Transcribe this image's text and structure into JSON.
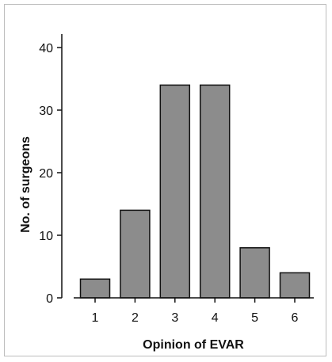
{
  "chart_data": {
    "type": "bar",
    "categories": [
      "1",
      "2",
      "3",
      "4",
      "5",
      "6"
    ],
    "values": [
      3,
      14,
      34,
      34,
      8,
      4
    ],
    "title": "",
    "xlabel": "Opinion of EVAR",
    "ylabel": "No. of surgeons",
    "ylim": [
      0,
      40
    ],
    "yticks": [
      "0",
      "10",
      "20",
      "30",
      "40"
    ],
    "grid": false,
    "legend": "none",
    "colors": {
      "bar_fill": "#8c8c8c",
      "bar_stroke": "#111111",
      "axis": "#111111"
    }
  }
}
